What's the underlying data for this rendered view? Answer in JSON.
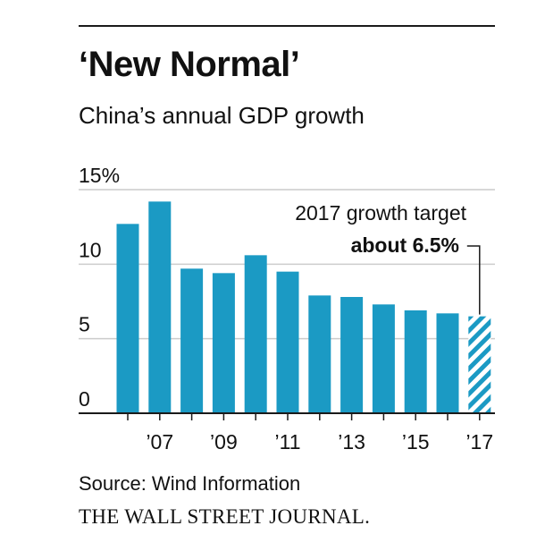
{
  "header": {
    "title": "‘New Normal’",
    "subtitle": "China’s annual GDP growth"
  },
  "footer": {
    "source": "Source: Wind Information",
    "publisher": "THE WALL STREET JOURNAL."
  },
  "annotation": {
    "line1": "2017 growth target",
    "line2": "about 6.5%"
  },
  "colors": {
    "bar": "#1b9ac4",
    "grid": "#cccccc",
    "axis": "#1a1a1a",
    "text": "#111111"
  },
  "chart_data": {
    "type": "bar",
    "title": "‘New Normal’",
    "subtitle": "China’s annual GDP growth",
    "categories": [
      "2006",
      "2007",
      "2008",
      "2009",
      "2010",
      "2011",
      "2012",
      "2013",
      "2014",
      "2015",
      "2016",
      "2017"
    ],
    "values": [
      12.7,
      14.2,
      9.7,
      9.4,
      10.6,
      9.5,
      7.9,
      7.8,
      7.3,
      6.9,
      6.7,
      6.5
    ],
    "projected": [
      false,
      false,
      false,
      false,
      false,
      false,
      false,
      false,
      false,
      false,
      false,
      true
    ],
    "x_tick_labels": [
      "’07",
      "’09",
      "’11",
      "’13",
      "’15",
      "’17"
    ],
    "x_tick_label_categories": [
      "2007",
      "2009",
      "2011",
      "2013",
      "2015",
      "2017"
    ],
    "y_ticks": [
      0,
      5,
      10,
      15
    ],
    "y_tick_labels": [
      "0",
      "5",
      "10",
      "15%"
    ],
    "ylim": [
      0,
      15
    ],
    "grid": true,
    "xlabel": "",
    "ylabel": ""
  }
}
